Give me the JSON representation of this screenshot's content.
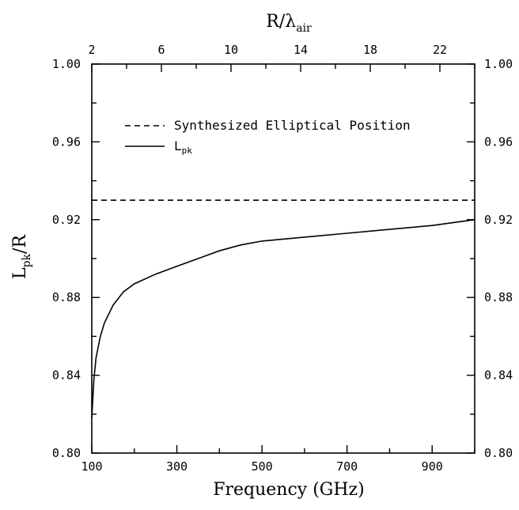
{
  "chart_data": {
    "type": "line",
    "xlabel": "Frequency (GHz)",
    "x2label": {
      "main": "R/λ",
      "sub": "air"
    },
    "ylabel": {
      "main": "L",
      "sub": "pk",
      "tail": "/R"
    },
    "xlim": [
      100,
      1000
    ],
    "ylim": [
      0.8,
      1.0
    ],
    "x2lim": [
      2,
      24
    ],
    "x_ticks": [
      100,
      300,
      500,
      700,
      900
    ],
    "x_tick_labels": [
      "100",
      "300",
      "500",
      "700",
      "900"
    ],
    "x2_ticks": [
      2,
      6,
      10,
      14,
      18,
      22
    ],
    "x2_tick_labels": [
      "2",
      "6",
      "10",
      "14",
      "18",
      "22"
    ],
    "y_ticks": [
      0.8,
      0.84,
      0.88,
      0.92,
      0.96,
      1.0
    ],
    "y_tick_labels": [
      "0.80",
      "0.84",
      "0.88",
      "0.92",
      "0.96",
      "1.00"
    ],
    "y2_tick_labels": [
      "0.80",
      "0.84",
      "0.88",
      "0.92",
      "0.96",
      "1.00"
    ],
    "grid": false,
    "legend_position": "top-left",
    "series": [
      {
        "name": "Synthesized Elliptical Position",
        "style": "dashed",
        "x": [
          100,
          1000
        ],
        "y": [
          0.93,
          0.93
        ]
      },
      {
        "name": "L",
        "name_sub": "pk",
        "style": "solid",
        "x": [
          100,
          105,
          110,
          120,
          130,
          150,
          175,
          200,
          250,
          300,
          350,
          400,
          450,
          500,
          600,
          700,
          800,
          900,
          1000
        ],
        "y": [
          0.818,
          0.838,
          0.849,
          0.86,
          0.867,
          0.876,
          0.883,
          0.887,
          0.892,
          0.896,
          0.9,
          0.904,
          0.907,
          0.909,
          0.911,
          0.913,
          0.915,
          0.917,
          0.92
        ]
      }
    ]
  }
}
